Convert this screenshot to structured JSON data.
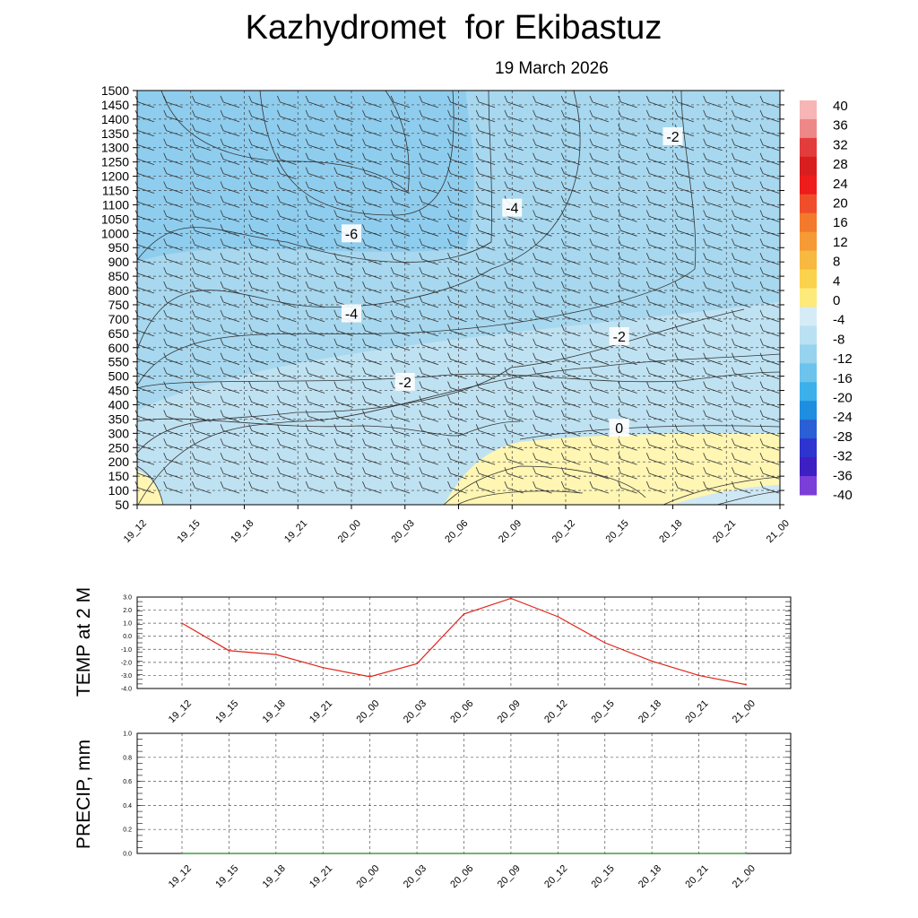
{
  "header": {
    "title": "Kazhydromet  for Ekibastuz",
    "date": "19 March 2026"
  },
  "colors": {
    "contour_fill_cold": "#bfe2f2",
    "contour_fill_colder": "#a7d8ef",
    "contour_fill_coldest": "#8fcdee",
    "warm_fill": "#fff6b3",
    "temp_line": "#e1251b",
    "precip_line": "#1a8a1a"
  },
  "chart_data": [
    {
      "type": "heatmap",
      "name": "vertical-cross-section",
      "description_label": "Temperature cross-section with wind barbs",
      "x_ticks": [
        "19_12",
        "19_15",
        "19_18",
        "19_21",
        "20_00",
        "20_03",
        "20_06",
        "20_09",
        "20_12",
        "20_15",
        "20_18",
        "20_21",
        "21_00"
      ],
      "y_ticks": [
        1500,
        1450,
        1400,
        1350,
        1300,
        1250,
        1200,
        1150,
        1100,
        1050,
        1000,
        950,
        900,
        850,
        800,
        750,
        700,
        650,
        600,
        550,
        500,
        450,
        400,
        350,
        300,
        250,
        200,
        150,
        100,
        50
      ],
      "ylim": [
        50,
        1500
      ],
      "contour_labels": [
        {
          "text": "-6",
          "x": "20_00",
          "y": 1000
        },
        {
          "text": "-4",
          "x": "20_00",
          "y": 720
        },
        {
          "text": "-2",
          "x": "20_03",
          "y": 480
        },
        {
          "text": "-4",
          "x": "20_09",
          "y": 1090
        },
        {
          "text": "-2",
          "x": "20_18",
          "y": 1340
        },
        {
          "text": "-2",
          "x": "20_15",
          "y": 640
        },
        {
          "text": "0",
          "x": "20_15",
          "y": 320
        }
      ],
      "colorbar": {
        "labels": [
          "40",
          "36",
          "32",
          "28",
          "24",
          "20",
          "16",
          "12",
          "8",
          "4",
          "0",
          "-4",
          "-8",
          "-12",
          "-16",
          "-20",
          "-24",
          "-28",
          "-32",
          "-36",
          "-40"
        ],
        "colors": [
          "#f7b5b5",
          "#ee8888",
          "#e33c3c",
          "#d81e1e",
          "#ee1c1c",
          "#f04e2a",
          "#f37a2c",
          "#f69a35",
          "#f8b940",
          "#fbd24c",
          "#fdea7b",
          "#d5ecf7",
          "#b9e1f3",
          "#97d3ef",
          "#6cc3ec",
          "#3bb0ea",
          "#1e8ee0",
          "#2a5fd6",
          "#2d34cf",
          "#3d1fc4",
          "#7b3ed8"
        ]
      }
    },
    {
      "type": "line",
      "name": "temp-2m",
      "ylabel": "TEMP at 2 M",
      "categories": [
        "19_12",
        "19_15",
        "19_18",
        "19_21",
        "20_00",
        "20_03",
        "20_06",
        "20_09",
        "20_12",
        "20_15",
        "20_18",
        "20_21",
        "21_00"
      ],
      "values": [
        1.0,
        -1.1,
        -1.4,
        -2.4,
        -3.1,
        -2.1,
        1.7,
        2.9,
        1.5,
        -0.5,
        -1.9,
        -3.0,
        -3.7
      ],
      "ylim": [
        -4.0,
        3.0
      ],
      "yticks": [
        "3.0",
        "2.0",
        "1.0",
        "0.0",
        "-1.0",
        "-2.0",
        "-3.0",
        "-4.0"
      ]
    },
    {
      "type": "line",
      "name": "precip",
      "ylabel": "PRECIP, mm",
      "categories": [
        "19_12",
        "19_15",
        "19_18",
        "19_21",
        "20_00",
        "20_03",
        "20_06",
        "20_09",
        "20_12",
        "20_15",
        "20_18",
        "20_21",
        "21_00"
      ],
      "values": [
        0,
        0,
        0,
        0,
        0,
        0,
        0,
        0,
        0,
        0,
        0,
        0,
        0
      ],
      "ylim": [
        0.0,
        1.0
      ],
      "yticks": [
        "1.0",
        "0.8",
        "0.6",
        "0.4",
        "0.2",
        "0.0"
      ]
    }
  ]
}
